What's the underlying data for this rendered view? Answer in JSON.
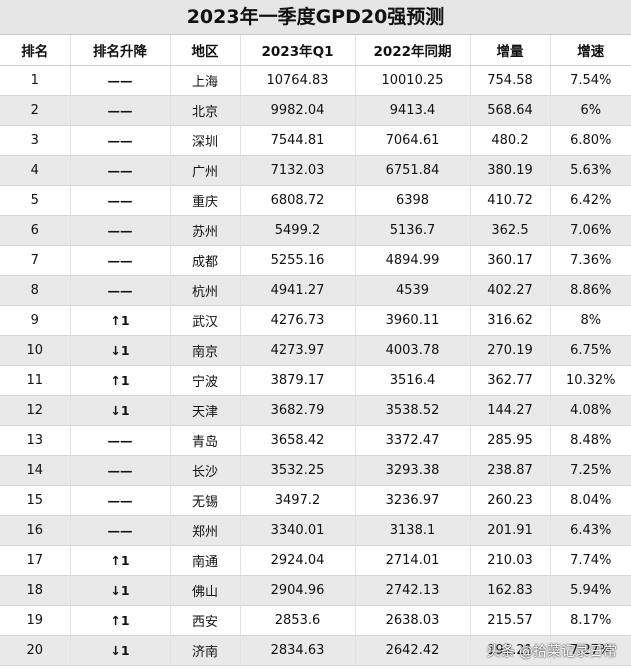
{
  "title": "2023年一季度GPD20强预测",
  "headers": [
    "排名",
    "排名升降",
    "地区",
    "2023年Q1",
    "2022年同期",
    "增量",
    "增速"
  ],
  "rows": [
    [
      "1",
      "——",
      "上海",
      "10764.83",
      "10010.25",
      "754.58",
      "7.54%"
    ],
    [
      "2",
      "——",
      "北京",
      "9982.04",
      "9413.4",
      "568.64",
      "6%"
    ],
    [
      "3",
      "——",
      "深圳",
      "7544.81",
      "7064.61",
      "480.2",
      "6.80%"
    ],
    [
      "4",
      "——",
      "广州",
      "7132.03",
      "6751.84",
      "380.19",
      "5.63%"
    ],
    [
      "5",
      "——",
      "重庆",
      "6808.72",
      "6398",
      "410.72",
      "6.42%"
    ],
    [
      "6",
      "——",
      "苏州",
      "5499.2",
      "5136.7",
      "362.5",
      "7.06%"
    ],
    [
      "7",
      "——",
      "成都",
      "5255.16",
      "4894.99",
      "360.17",
      "7.36%"
    ],
    [
      "8",
      "——",
      "杭州",
      "4941.27",
      "4539",
      "402.27",
      "8.86%"
    ],
    [
      "9",
      "↑1",
      "武汉",
      "4276.73",
      "3960.11",
      "316.62",
      "8%"
    ],
    [
      "10",
      "↓1",
      "南京",
      "4273.97",
      "4003.78",
      "270.19",
      "6.75%"
    ],
    [
      "11",
      "↑1",
      "宁波",
      "3879.17",
      "3516.4",
      "362.77",
      "10.32%"
    ],
    [
      "12",
      "↓1",
      "天津",
      "3682.79",
      "3538.52",
      "144.27",
      "4.08%"
    ],
    [
      "13",
      "——",
      "青岛",
      "3658.42",
      "3372.47",
      "285.95",
      "8.48%"
    ],
    [
      "14",
      "——",
      "长沙",
      "3532.25",
      "3293.38",
      "238.87",
      "7.25%"
    ],
    [
      "15",
      "——",
      "无锡",
      "3497.2",
      "3236.97",
      "260.23",
      "8.04%"
    ],
    [
      "16",
      "——",
      "郑州",
      "3340.01",
      "3138.1",
      "201.91",
      "6.43%"
    ],
    [
      "17",
      "↑1",
      "南通",
      "2924.04",
      "2714.01",
      "210.03",
      "7.74%"
    ],
    [
      "18",
      "↓1",
      "佛山",
      "2904.96",
      "2742.13",
      "162.83",
      "5.94%"
    ],
    [
      "19",
      "↑1",
      "西安",
      "2853.6",
      "2638.03",
      "215.57",
      "8.17%"
    ],
    [
      "20",
      "↓1",
      "济南",
      "2834.63",
      "2642.42",
      "192.21",
      "7.27%"
    ]
  ],
  "watermark": "头条 @拾菜记录日常"
}
